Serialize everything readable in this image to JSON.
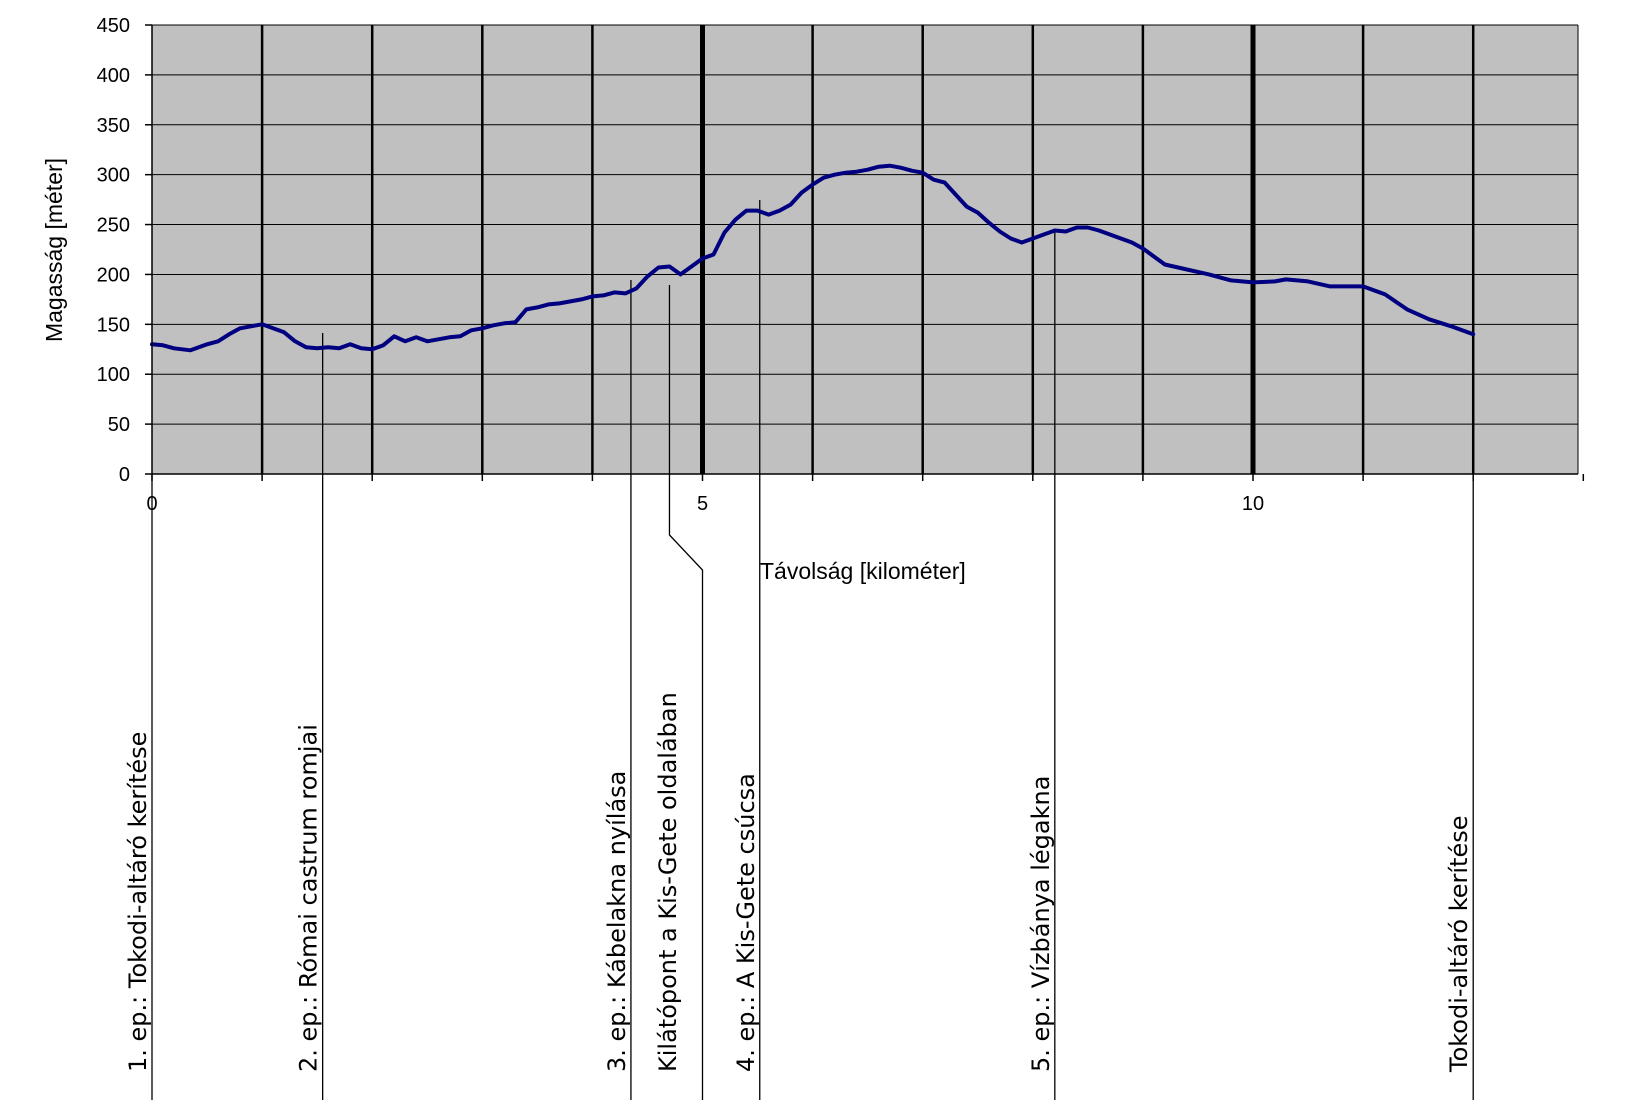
{
  "chart_data": {
    "type": "line",
    "title": "",
    "xlabel": "Távolság [kilométer]",
    "ylabel": "Magasság [méter]",
    "xlim": [
      0,
      13
    ],
    "ylim": [
      0,
      450
    ],
    "x_ticks": [
      "0",
      "5",
      "10"
    ],
    "x_tick_values": [
      0,
      5,
      10
    ],
    "y_ticks": [
      "0",
      "50",
      "100",
      "150",
      "200",
      "250",
      "300",
      "350",
      "400",
      "450"
    ],
    "y_tick_values": [
      0,
      50,
      100,
      150,
      200,
      250,
      300,
      350,
      400,
      450
    ],
    "grid": "horizontal and vertical",
    "plot_background": "#c0c0c0",
    "line_color": "#000080",
    "vertical_gridlines_x": [
      1,
      2,
      3,
      4,
      5,
      6,
      7,
      8,
      9,
      10,
      11,
      12
    ],
    "series": [
      {
        "x": [
          0,
          0.1,
          0.2,
          0.35,
          0.5,
          0.6,
          0.7,
          0.8,
          0.9,
          1.0,
          1.1,
          1.2,
          1.3,
          1.4,
          1.5,
          1.6,
          1.7,
          1.8,
          1.9,
          2.0,
          2.1,
          2.2,
          2.3,
          2.4,
          2.5,
          2.6,
          2.7,
          2.8,
          2.9,
          3.0,
          3.1,
          3.2,
          3.3,
          3.4,
          3.5,
          3.6,
          3.7,
          3.8,
          3.9,
          4.0,
          4.1,
          4.2,
          4.3,
          4.4,
          4.5,
          4.6,
          4.7,
          4.8,
          4.9,
          5.0,
          5.1,
          5.2,
          5.3,
          5.4,
          5.5,
          5.6,
          5.7,
          5.8,
          5.9,
          6.0,
          6.1,
          6.2,
          6.3,
          6.4,
          6.5,
          6.6,
          6.7,
          6.8,
          6.9,
          7.0,
          7.1,
          7.2,
          7.3,
          7.4,
          7.5,
          7.6,
          7.7,
          7.8,
          7.9,
          8.0,
          8.1,
          8.2,
          8.3,
          8.4,
          8.5,
          8.6,
          8.7,
          8.8,
          8.9,
          9.0,
          9.2,
          9.4,
          9.6,
          9.8,
          10.0,
          10.2,
          10.3,
          10.5,
          10.7,
          10.9,
          11.0,
          11.2,
          11.4,
          11.6,
          11.8,
          12.0
        ],
        "y": [
          130,
          129,
          126,
          124,
          130,
          133,
          140,
          146,
          148,
          150,
          146,
          142,
          133,
          127,
          126,
          127,
          126,
          130,
          126,
          125,
          129,
          138,
          133,
          137,
          133,
          135,
          137,
          138,
          144,
          146,
          149,
          151,
          152,
          165,
          167,
          170,
          171,
          173,
          175,
          178,
          179,
          182,
          181,
          186,
          198,
          207,
          208,
          200,
          208,
          216,
          220,
          242,
          255,
          264,
          264,
          260,
          264,
          270,
          282,
          290,
          297,
          300,
          302,
          303,
          305,
          308,
          309,
          307,
          304,
          302,
          295,
          292,
          280,
          268,
          262,
          252,
          243,
          236,
          232,
          236,
          240,
          244,
          243,
          247,
          247,
          244,
          240,
          236,
          232,
          226,
          210,
          205,
          200,
          194,
          192,
          193,
          195,
          193,
          188,
          188,
          188,
          180,
          165,
          155,
          148,
          140
        ]
      }
    ],
    "markers": [
      {
        "label": "1. ep.: Tokodi-altáró kerítése",
        "x": 0
      },
      {
        "label": "2. ep.: Római castrum romjai",
        "x": 1.55
      },
      {
        "label": "3. ep.: Kábelakna nyílása",
        "x": 4.35
      },
      {
        "label": "Kilátópont a Kis-Gete oldalában",
        "x": 4.7
      },
      {
        "label": "4. ep.: A Kis-Gete csúcsa",
        "x": 5.52
      },
      {
        "label": "5. ep.: Vízbánya légakna",
        "x": 8.2
      },
      {
        "label": "Tokodi-altáró kerítése",
        "x": 12.0
      }
    ]
  }
}
